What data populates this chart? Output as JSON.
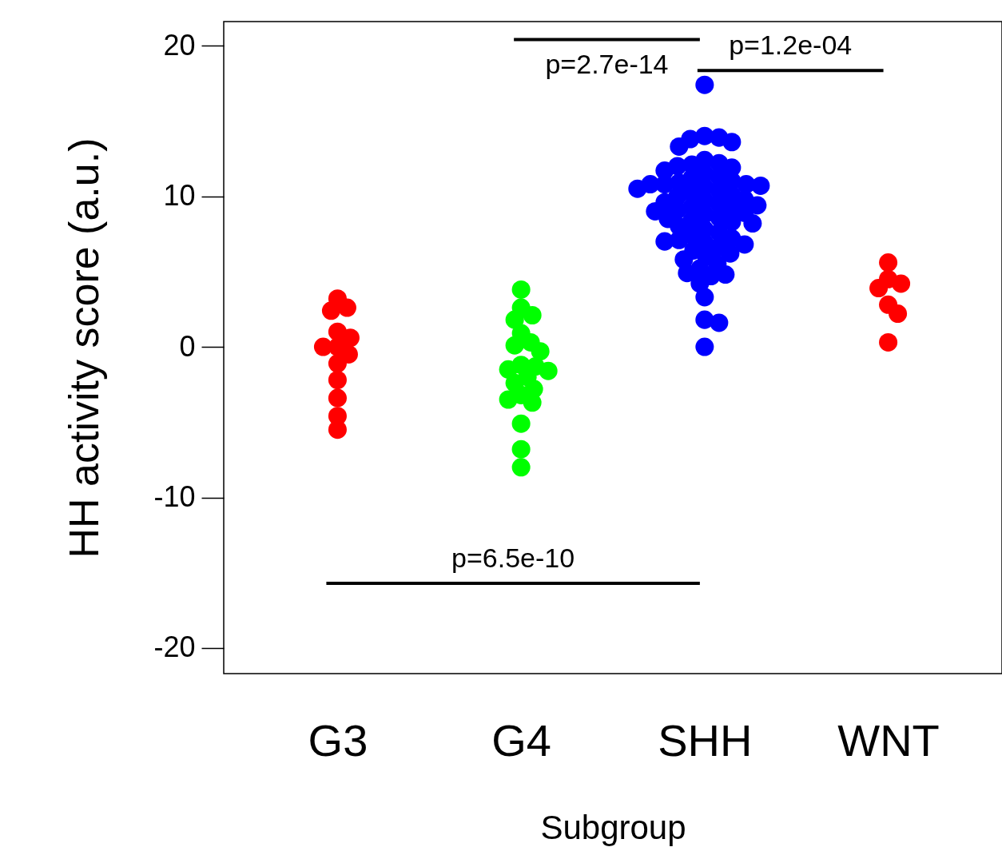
{
  "chart_data": {
    "type": "scatter",
    "xlabel": "Subgroup",
    "ylabel": "HH activity score (a.u.)",
    "categories": [
      "G3",
      "G4",
      "SHH",
      "WNT"
    ],
    "ylim": [
      -21.7,
      21.6
    ],
    "yticks": [
      -20,
      -10,
      0,
      10,
      20
    ],
    "grid": false,
    "legend": false,
    "marker": "circle",
    "series": [
      {
        "color": "#ff0000",
        "x": [
          "G3",
          "G3",
          "G3",
          "G3",
          "G3",
          "G3",
          "G3",
          "G3",
          "G3",
          "G3",
          "G3",
          "G3",
          "G3"
        ],
        "values": [
          3.2,
          2.6,
          2.4,
          1.0,
          0.6,
          0.0,
          0.0,
          -0.5,
          -1.1,
          -2.2,
          -3.4,
          -4.6,
          -5.5
        ]
      },
      {
        "color": "#00ff00",
        "x": [
          "G4",
          "G4",
          "G4",
          "G4",
          "G4",
          "G4",
          "G4",
          "G4",
          "G4",
          "G4",
          "G4",
          "G4",
          "G4",
          "G4",
          "G4",
          "G4",
          "G4",
          "G4",
          "G4",
          "G4",
          "G4"
        ],
        "values": [
          3.8,
          2.6,
          2.1,
          1.8,
          0.9,
          0.3,
          0.1,
          -0.3,
          -1.2,
          -1.3,
          -1.5,
          -1.6,
          -2.0,
          -2.4,
          -2.8,
          -3.2,
          -3.5,
          -3.7,
          -5.1,
          -6.8,
          -8.0
        ]
      },
      {
        "color": "#0000ff",
        "x": [
          "SHH",
          "SHH",
          "SHH",
          "SHH",
          "SHH",
          "SHH",
          "SHH",
          "SHH",
          "SHH",
          "SHH",
          "SHH",
          "SHH",
          "SHH",
          "SHH",
          "SHH",
          "SHH",
          "SHH",
          "SHH",
          "SHH",
          "SHH",
          "SHH",
          "SHH",
          "SHH",
          "SHH",
          "SHH",
          "SHH",
          "SHH",
          "SHH",
          "SHH",
          "SHH",
          "SHH",
          "SHH",
          "SHH",
          "SHH",
          "SHH",
          "SHH",
          "SHH",
          "SHH",
          "SHH",
          "SHH",
          "SHH",
          "SHH",
          "SHH",
          "SHH",
          "SHH",
          "SHH",
          "SHH",
          "SHH",
          "SHH",
          "SHH",
          "SHH",
          "SHH",
          "SHH",
          "SHH",
          "SHH",
          "SHH",
          "SHH",
          "SHH",
          "SHH",
          "SHH",
          "SHH",
          "SHH",
          "SHH",
          "SHH",
          "SHH",
          "SHH",
          "SHH"
        ],
        "values": [
          17.4,
          14.0,
          13.9,
          13.8,
          13.6,
          13.3,
          12.4,
          12.2,
          12.1,
          12.0,
          11.9,
          11.7,
          11.5,
          11.3,
          11.2,
          11.0,
          10.9,
          10.8,
          10.8,
          10.8,
          10.7,
          10.6,
          10.5,
          10.4,
          10.2,
          10.1,
          10.0,
          9.8,
          9.7,
          9.6,
          9.5,
          9.4,
          9.3,
          9.2,
          9.1,
          9.0,
          8.9,
          8.8,
          8.6,
          8.5,
          8.4,
          8.3,
          8.2,
          8.0,
          7.8,
          7.6,
          7.4,
          7.2,
          7.1,
          7.0,
          6.9,
          6.8,
          6.6,
          6.4,
          6.2,
          6.0,
          5.8,
          5.5,
          5.2,
          4.9,
          4.8,
          4.7,
          4.2,
          3.3,
          1.8,
          1.6,
          0.0
        ]
      },
      {
        "color": "#ff0000",
        "x": [
          "WNT",
          "WNT",
          "WNT",
          "WNT",
          "WNT",
          "WNT",
          "WNT"
        ],
        "values": [
          5.6,
          4.5,
          4.2,
          3.9,
          2.8,
          2.2,
          0.3
        ]
      }
    ],
    "annotations": [
      "p=2.7e-14",
      "p=1.2e-04",
      "p=6.5e-10"
    ]
  }
}
